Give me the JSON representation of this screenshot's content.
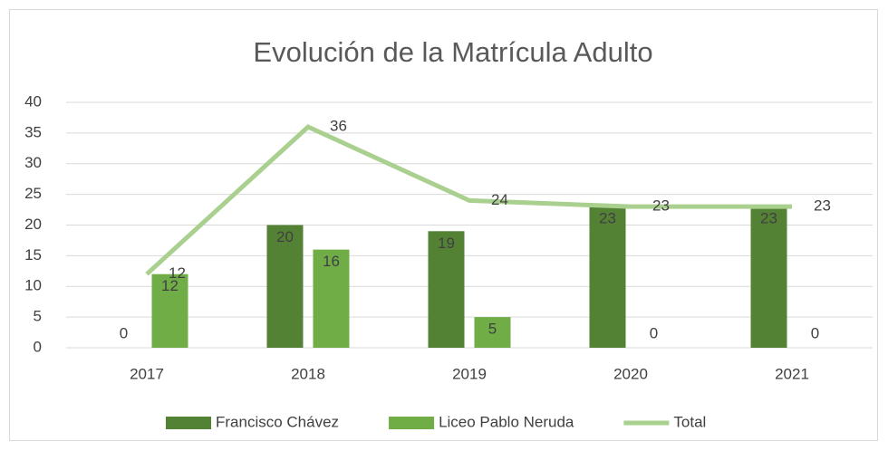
{
  "chart_data": {
    "type": "bar",
    "title": "Evolución de la Matrícula Adulto",
    "categories": [
      "2017",
      "2018",
      "2019",
      "2020",
      "2021"
    ],
    "series": [
      {
        "name": "Francisco Chávez",
        "color": "#548235",
        "values": [
          0,
          20,
          19,
          23,
          23
        ]
      },
      {
        "name": "Liceo Pablo Neruda",
        "color": "#70ad47",
        "values": [
          12,
          16,
          5,
          0,
          0
        ]
      },
      {
        "name": "Total",
        "type": "line",
        "color": "#a9d08e",
        "values": [
          12,
          36,
          24,
          23,
          23
        ]
      }
    ],
    "ylim": [
      0,
      40
    ],
    "yticks": [
      0,
      5,
      10,
      15,
      20,
      25,
      30,
      35,
      40
    ],
    "grid": true,
    "legend": "bottom"
  }
}
